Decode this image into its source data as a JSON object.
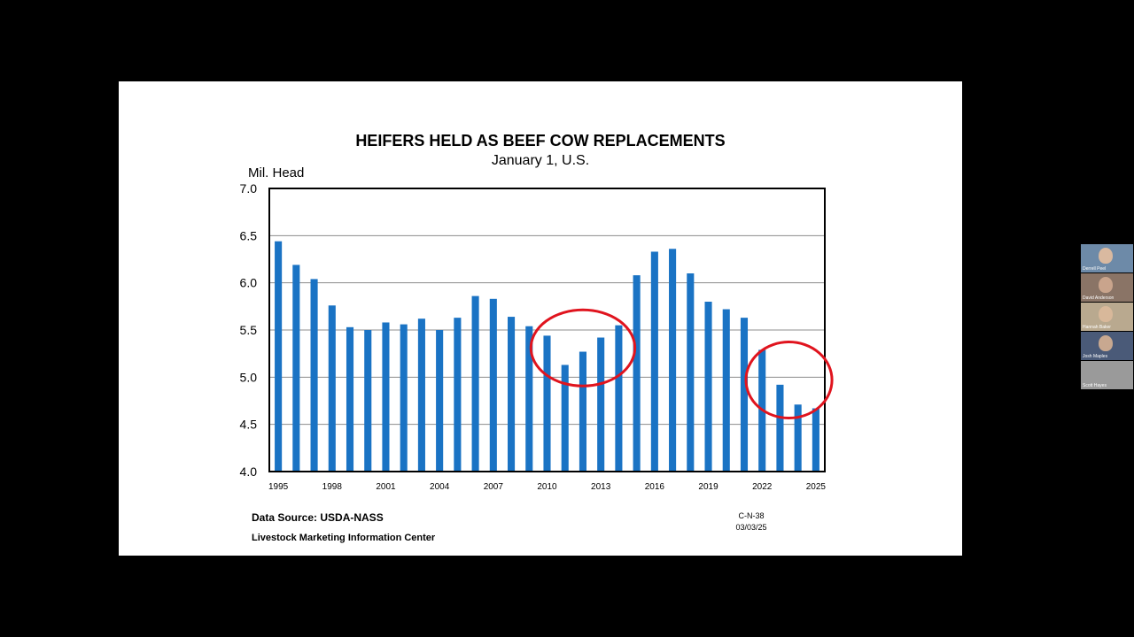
{
  "slide": {
    "title": "HEIFERS HELD AS BEEF COW REPLACEMENTS",
    "subtitle": "January 1, U.S.",
    "ylabel": "Mil. Head",
    "source": "Data Source:  USDA-NASS",
    "organization": "Livestock Marketing Information Center",
    "chart_code": "C-N-38",
    "chart_date": "03/03/25"
  },
  "chart_data": {
    "type": "bar",
    "title": "HEIFERS HELD AS BEEF COW REPLACEMENTS",
    "subtitle": "January 1, U.S.",
    "ylabel": "Mil. Head",
    "xlabel": "",
    "ylim": [
      4.0,
      7.0
    ],
    "yticks": [
      4.0,
      4.5,
      5.0,
      5.5,
      6.0,
      6.5,
      7.0
    ],
    "ytick_labels": [
      "4.0",
      "4.5",
      "5.0",
      "5.5",
      "6.0",
      "6.5",
      "7.0"
    ],
    "xtick_labels": [
      "1995",
      "1998",
      "2001",
      "2004",
      "2007",
      "2010",
      "2013",
      "2016",
      "2019",
      "2022",
      "2025"
    ],
    "grid": true,
    "bar_color": "#1a73c4",
    "categories": [
      1995,
      1996,
      1997,
      1998,
      1999,
      2000,
      2001,
      2002,
      2003,
      2004,
      2005,
      2006,
      2007,
      2008,
      2009,
      2010,
      2011,
      2012,
      2013,
      2014,
      2015,
      2016,
      2017,
      2018,
      2019,
      2020,
      2021,
      2022,
      2023,
      2024,
      2025
    ],
    "values": [
      6.44,
      6.19,
      6.04,
      5.76,
      5.53,
      5.5,
      5.58,
      5.56,
      5.62,
      5.5,
      5.63,
      5.86,
      5.83,
      5.64,
      5.54,
      5.44,
      5.13,
      5.27,
      5.42,
      5.55,
      6.08,
      6.33,
      6.36,
      6.1,
      5.8,
      5.72,
      5.63,
      5.29,
      4.92,
      4.71,
      4.67
    ],
    "annotations": [
      {
        "type": "ellipse",
        "color": "#e0141e",
        "x_range": [
          2010,
          2014
        ],
        "y_center": 5.31
      },
      {
        "type": "ellipse",
        "color": "#e0141e",
        "x_range": [
          2022,
          2025
        ],
        "y_center": 4.97
      }
    ]
  },
  "participants": [
    {
      "name": "Derrell Peel",
      "bg": "#6d8aa8",
      "face": "#d9b9a0"
    },
    {
      "name": "David Anderson",
      "bg": "#8a7466",
      "face": "#c9a48c"
    },
    {
      "name": "Hannah Baker",
      "bg": "#b9a98f",
      "face": "#d8b89a"
    },
    {
      "name": "Josh Maples",
      "bg": "#4a5a78",
      "face": "#c8a890"
    },
    {
      "name": "Scott Hayes",
      "bg": "#9a9a9a",
      "face": "#9a9a9a"
    }
  ]
}
